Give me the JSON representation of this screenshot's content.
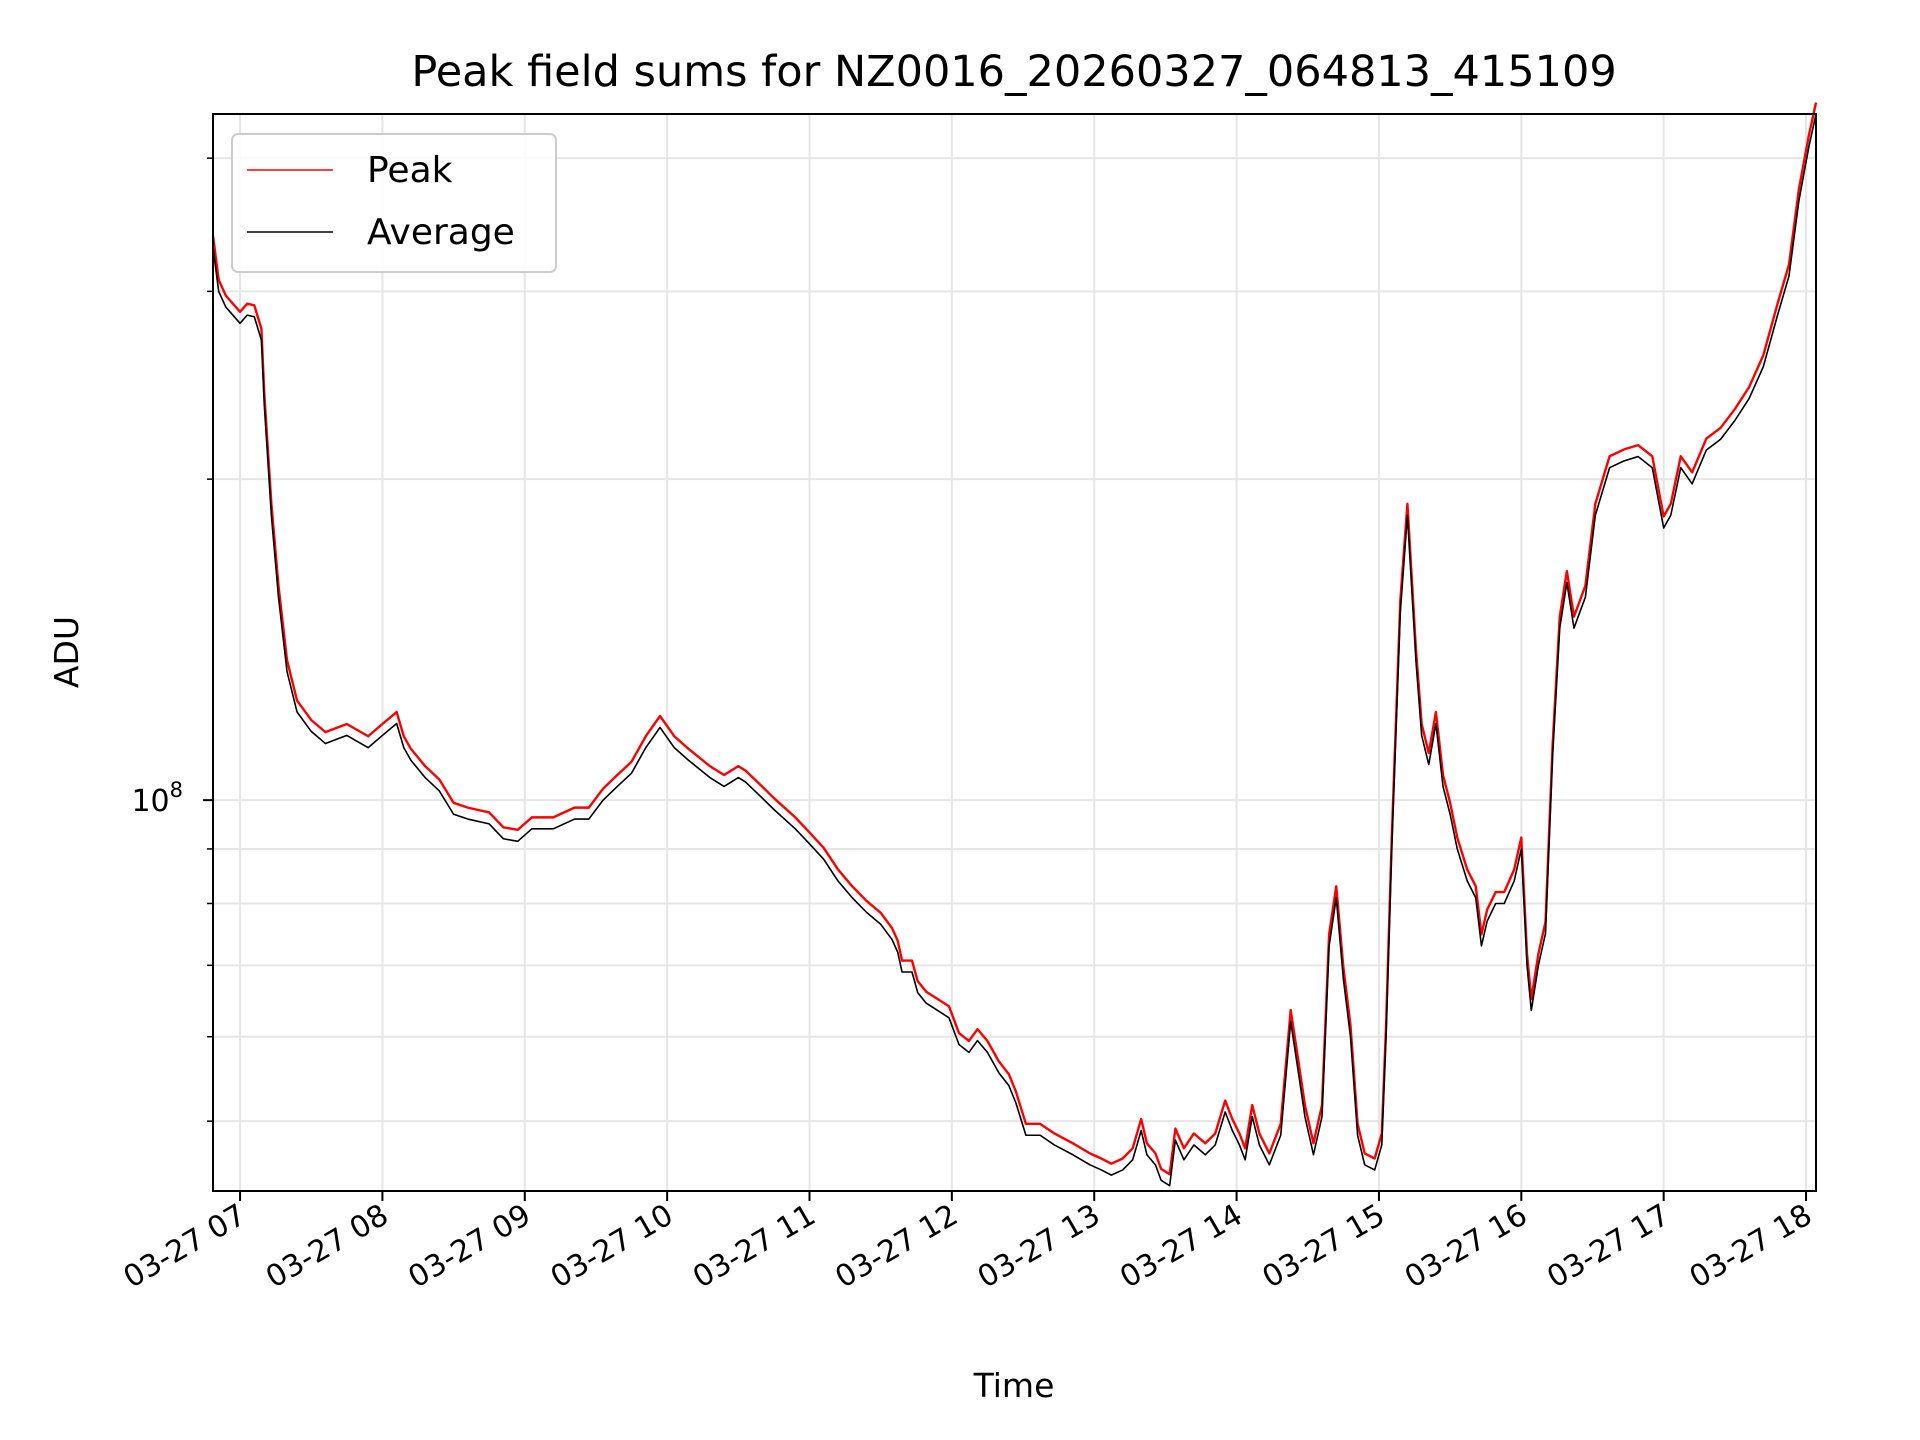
{
  "chart_data": {
    "type": "line",
    "title": "Peak field sums for NZ0016_20260327_064813_415109",
    "xlabel": "Time",
    "ylabel": "ADU",
    "yscale": "log",
    "grid": true,
    "legend_position": "upper-left",
    "colors": {
      "peak": "#ff0000",
      "average": "#000000",
      "grid": "#e6e6e6"
    },
    "xlim": [
      6.81,
      18.07
    ],
    "ylim": [
      43000000,
      440000000
    ],
    "x_ticks": [
      {
        "value": 7,
        "label": "03-27 07"
      },
      {
        "value": 8,
        "label": "03-27 08"
      },
      {
        "value": 9,
        "label": "03-27 09"
      },
      {
        "value": 10,
        "label": "03-27 10"
      },
      {
        "value": 11,
        "label": "03-27 11"
      },
      {
        "value": 12,
        "label": "03-27 12"
      },
      {
        "value": 13,
        "label": "03-27 13"
      },
      {
        "value": 14,
        "label": "03-27 14"
      },
      {
        "value": 15,
        "label": "03-27 15"
      },
      {
        "value": 16,
        "label": "03-27 16"
      },
      {
        "value": 17,
        "label": "03-27 17"
      },
      {
        "value": 18,
        "label": "03-27 18"
      }
    ],
    "y_major_ticks": [
      {
        "value": 100000000,
        "mantissa": "10",
        "exponent": "8"
      }
    ],
    "y_minor_ticks": [
      50000000,
      60000000,
      70000000,
      80000000,
      90000000,
      200000000,
      300000000,
      400000000
    ],
    "legend": [
      {
        "key": "peak",
        "label": "Peak"
      },
      {
        "key": "average",
        "label": "Average"
      }
    ],
    "series": [
      {
        "name": "Average",
        "points": [
          [
            6.81,
            330000000
          ],
          [
            6.85,
            300000000
          ],
          [
            6.9,
            290000000
          ],
          [
            7.0,
            280000000
          ],
          [
            7.05,
            285000000
          ],
          [
            7.1,
            284000000
          ],
          [
            7.15,
            270000000
          ],
          [
            7.17,
            235000000
          ],
          [
            7.22,
            185000000
          ],
          [
            7.27,
            155000000
          ],
          [
            7.33,
            132000000
          ],
          [
            7.4,
            121000000
          ],
          [
            7.5,
            116000000
          ],
          [
            7.6,
            113000000
          ],
          [
            7.75,
            115000000
          ],
          [
            7.9,
            112000000
          ],
          [
            8.0,
            115000000
          ],
          [
            8.1,
            118000000
          ],
          [
            8.15,
            112000000
          ],
          [
            8.2,
            109000000
          ],
          [
            8.3,
            105000000
          ],
          [
            8.4,
            102000000
          ],
          [
            8.5,
            97000000
          ],
          [
            8.6,
            96000000
          ],
          [
            8.75,
            95000000
          ],
          [
            8.85,
            92000000
          ],
          [
            8.95,
            91500000
          ],
          [
            9.05,
            94000000
          ],
          [
            9.2,
            94000000
          ],
          [
            9.35,
            96000000
          ],
          [
            9.45,
            96000000
          ],
          [
            9.55,
            100000000
          ],
          [
            9.65,
            103000000
          ],
          [
            9.75,
            106000000
          ],
          [
            9.85,
            112000000
          ],
          [
            9.95,
            117000000
          ],
          [
            10.05,
            112000000
          ],
          [
            10.15,
            109000000
          ],
          [
            10.3,
            105000000
          ],
          [
            10.4,
            103000000
          ],
          [
            10.5,
            105000000
          ],
          [
            10.55,
            104000000
          ],
          [
            10.65,
            101000000
          ],
          [
            10.75,
            98000000
          ],
          [
            10.9,
            94000000
          ],
          [
            11.0,
            91000000
          ],
          [
            11.1,
            88000000
          ],
          [
            11.2,
            84000000
          ],
          [
            11.3,
            81000000
          ],
          [
            11.4,
            78500000
          ],
          [
            11.5,
            76500000
          ],
          [
            11.58,
            74000000
          ],
          [
            11.62,
            72000000
          ],
          [
            11.65,
            69000000
          ],
          [
            11.72,
            69000000
          ],
          [
            11.76,
            66000000
          ],
          [
            11.82,
            64500000
          ],
          [
            11.9,
            63500000
          ],
          [
            11.98,
            62500000
          ],
          [
            12.05,
            59000000
          ],
          [
            12.12,
            58000000
          ],
          [
            12.18,
            59500000
          ],
          [
            12.25,
            58000000
          ],
          [
            12.33,
            55500000
          ],
          [
            12.4,
            54000000
          ],
          [
            12.45,
            52000000
          ],
          [
            12.52,
            48500000
          ],
          [
            12.62,
            48500000
          ],
          [
            12.72,
            47500000
          ],
          [
            12.85,
            46500000
          ],
          [
            12.97,
            45500000
          ],
          [
            13.05,
            45000000
          ],
          [
            13.12,
            44500000
          ],
          [
            13.2,
            45000000
          ],
          [
            13.27,
            46000000
          ],
          [
            13.33,
            49000000
          ],
          [
            13.37,
            46500000
          ],
          [
            13.43,
            45500000
          ],
          [
            13.47,
            44000000
          ],
          [
            13.53,
            43500000
          ],
          [
            13.57,
            48000000
          ],
          [
            13.63,
            46000000
          ],
          [
            13.7,
            47500000
          ],
          [
            13.78,
            46500000
          ],
          [
            13.85,
            47500000
          ],
          [
            13.92,
            51000000
          ],
          [
            13.97,
            49000000
          ],
          [
            14.02,
            47500000
          ],
          [
            14.06,
            46000000
          ],
          [
            14.11,
            50500000
          ],
          [
            14.16,
            47500000
          ],
          [
            14.23,
            45500000
          ],
          [
            14.31,
            48500000
          ],
          [
            14.38,
            62000000
          ],
          [
            14.43,
            56000000
          ],
          [
            14.48,
            50500000
          ],
          [
            14.54,
            46500000
          ],
          [
            14.6,
            50500000
          ],
          [
            14.65,
            73000000
          ],
          [
            14.7,
            81000000
          ],
          [
            14.75,
            68000000
          ],
          [
            14.8,
            60000000
          ],
          [
            14.85,
            48500000
          ],
          [
            14.9,
            45500000
          ],
          [
            14.97,
            45000000
          ],
          [
            15.02,
            47500000
          ],
          [
            15.05,
            60000000
          ],
          [
            15.09,
            90000000
          ],
          [
            15.15,
            150000000
          ],
          [
            15.2,
            185000000
          ],
          [
            15.26,
            135000000
          ],
          [
            15.3,
            115000000
          ],
          [
            15.35,
            108000000
          ],
          [
            15.4,
            118000000
          ],
          [
            15.45,
            103000000
          ],
          [
            15.5,
            97000000
          ],
          [
            15.55,
            90000000
          ],
          [
            15.62,
            84000000
          ],
          [
            15.68,
            81000000
          ],
          [
            15.72,
            73000000
          ],
          [
            15.76,
            77000000
          ],
          [
            15.82,
            80000000
          ],
          [
            15.88,
            80000000
          ],
          [
            15.95,
            84000000
          ],
          [
            16.0,
            90000000
          ],
          [
            16.04,
            70000000
          ],
          [
            16.07,
            63500000
          ],
          [
            16.12,
            70000000
          ],
          [
            16.17,
            75000000
          ],
          [
            16.22,
            110000000
          ],
          [
            16.27,
            145000000
          ],
          [
            16.32,
            160000000
          ],
          [
            16.37,
            145000000
          ],
          [
            16.45,
            155000000
          ],
          [
            16.52,
            185000000
          ],
          [
            16.62,
            205000000
          ],
          [
            16.72,
            208000000
          ],
          [
            16.82,
            210000000
          ],
          [
            16.92,
            205000000
          ],
          [
            17.0,
            180000000
          ],
          [
            17.05,
            185000000
          ],
          [
            17.12,
            205000000
          ],
          [
            17.2,
            198000000
          ],
          [
            17.3,
            213000000
          ],
          [
            17.4,
            218000000
          ],
          [
            17.5,
            227000000
          ],
          [
            17.6,
            238000000
          ],
          [
            17.7,
            255000000
          ],
          [
            17.8,
            285000000
          ],
          [
            17.88,
            310000000
          ],
          [
            17.95,
            365000000
          ],
          [
            18.02,
            410000000
          ],
          [
            18.07,
            440000000
          ]
        ]
      },
      {
        "name": "Peak",
        "offset": 1.025
      }
    ]
  }
}
